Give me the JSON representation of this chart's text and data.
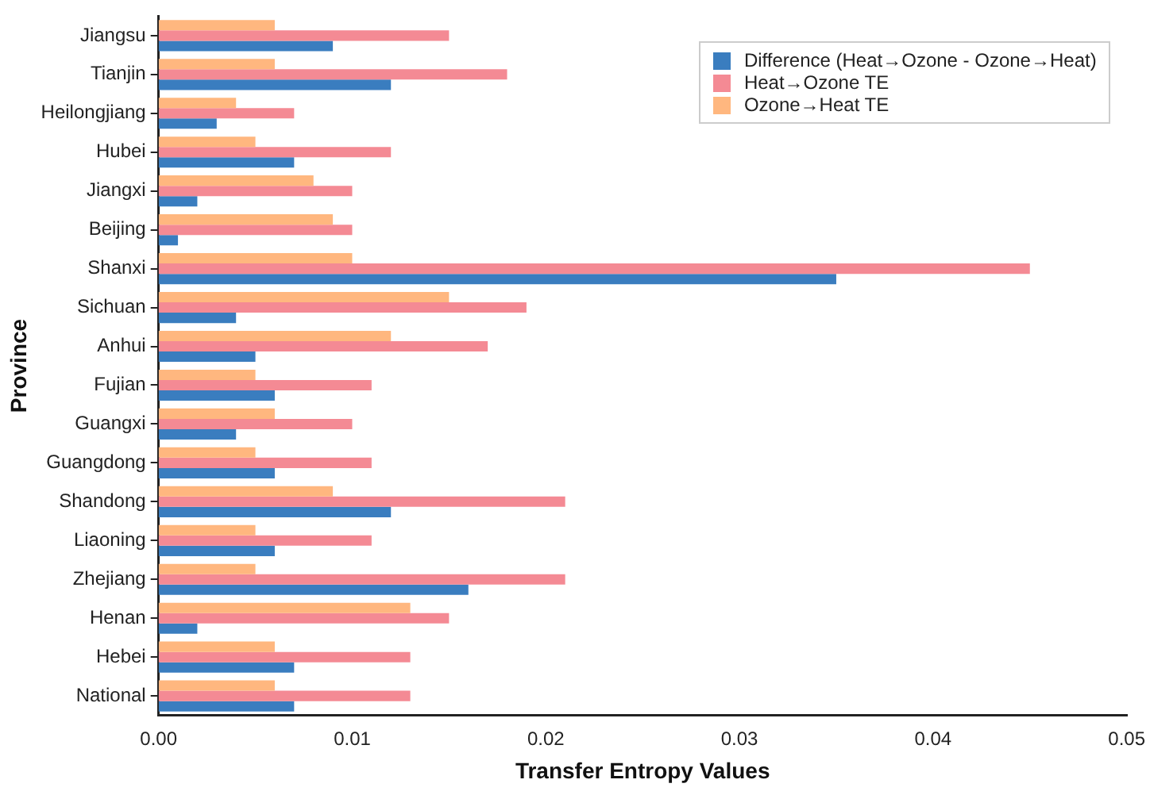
{
  "chart_data": {
    "type": "bar",
    "orientation": "horizontal",
    "xlabel": "Transfer Entropy Values",
    "ylabel": "Province",
    "categories": [
      "Jiangsu",
      "Tianjin",
      "Heilongjiang",
      "Hubei",
      "Jiangxi",
      "Beijing",
      "Shanxi",
      "Sichuan",
      "Anhui",
      "Fujian",
      "Guangxi",
      "Guangdong",
      "Shandong",
      "Liaoning",
      "Zhejiang",
      "Henan",
      "Hebei",
      "National"
    ],
    "series": [
      {
        "name": "Difference (Heat→Ozone - Ozone→Heat)",
        "color": "#3a7dbf",
        "values": [
          0.009,
          0.012,
          0.003,
          0.007,
          0.002,
          0.001,
          0.035,
          0.004,
          0.005,
          0.006,
          0.004,
          0.006,
          0.012,
          0.006,
          0.016,
          0.002,
          0.007,
          0.007
        ]
      },
      {
        "name": "Heat→Ozone TE",
        "color": "#f48a94",
        "values": [
          0.015,
          0.018,
          0.007,
          0.012,
          0.01,
          0.01,
          0.045,
          0.019,
          0.017,
          0.011,
          0.01,
          0.011,
          0.021,
          0.011,
          0.021,
          0.015,
          0.013,
          0.013
        ]
      },
      {
        "name": "Ozone→Heat TE",
        "color": "#ffb77f",
        "values": [
          0.006,
          0.006,
          0.004,
          0.005,
          0.008,
          0.009,
          0.01,
          0.015,
          0.012,
          0.005,
          0.006,
          0.005,
          0.009,
          0.005,
          0.005,
          0.013,
          0.006,
          0.006
        ]
      }
    ],
    "xlim": [
      0,
      0.05
    ],
    "xticks": [
      {
        "value": 0,
        "label": "0.00"
      },
      {
        "value": 0.01,
        "label": "0.01"
      },
      {
        "value": 0.02,
        "label": "0.02"
      },
      {
        "value": 0.03,
        "label": "0.03"
      },
      {
        "value": 0.04,
        "label": "0.04"
      },
      {
        "value": 0.05,
        "label": "0.05"
      }
    ],
    "grid": false,
    "legend": "top right"
  }
}
